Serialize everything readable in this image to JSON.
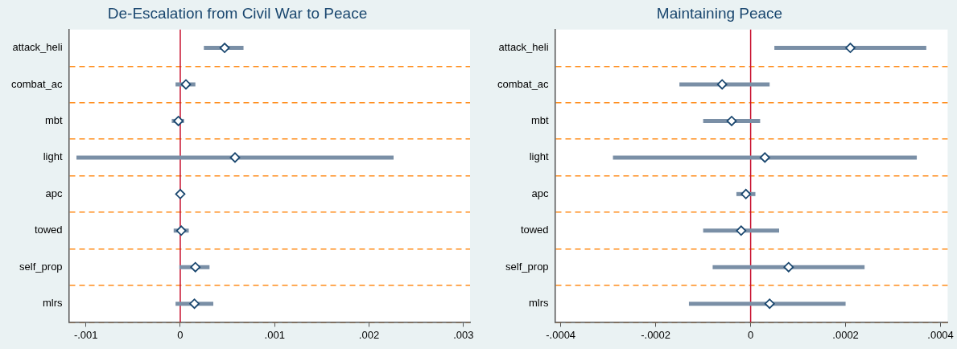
{
  "chart_data": [
    {
      "type": "scatter",
      "title": "De-Escalation from Civil War to Peace",
      "orientation": "horizontal",
      "marker": "diamond",
      "grid": "y",
      "categories": [
        "attack_heli",
        "combat_ac",
        "mbt",
        "light",
        "apc",
        "towed",
        "self_prop",
        "mlrs"
      ],
      "series": [
        {
          "color": "#1a476f",
          "values": [
            0.00047,
            6e-05,
            -2e-05,
            0.00058,
            0,
            1e-05,
            0.00016,
            0.00015
          ],
          "errors": [
            [
              0.00025,
              0.00067
            ],
            [
              -5e-05,
              0.00016
            ],
            [
              -9e-05,
              4e-05
            ],
            [
              -0.0011,
              0.00226
            ],
            null,
            [
              -7e-05,
              9e-05
            ],
            [
              -1e-05,
              0.00031
            ],
            [
              -5e-05,
              0.00035
            ]
          ]
        }
      ],
      "xlim": [
        -0.00118,
        0.00307
      ],
      "xticks": [
        {
          "value": -0.001,
          "label": "-.001"
        },
        0,
        {
          "value": 0.001,
          "label": ".001"
        },
        {
          "value": 0.002,
          "label": ".002"
        },
        {
          "value": 0.003,
          "label": ".003"
        }
      ],
      "ref_lines": [
        {
          "axis": "x",
          "value": 0,
          "color": "#c8102e"
        }
      ]
    },
    {
      "type": "scatter",
      "title": "Maintaining Peace",
      "orientation": "horizontal",
      "marker": "diamond",
      "grid": "y",
      "categories": [
        "attack_heli",
        "combat_ac",
        "mbt",
        "light",
        "apc",
        "towed",
        "self_prop",
        "mlrs"
      ],
      "series": [
        {
          "color": "#1a476f",
          "values": [
            0.00021,
            -6e-05,
            -4e-05,
            3e-05,
            -1e-05,
            -2e-05,
            8e-05,
            4e-05
          ],
          "errors": [
            [
              5e-05,
              0.00037
            ],
            [
              -0.00015,
              4e-05
            ],
            [
              -0.0001,
              2e-05
            ],
            [
              -0.00029,
              0.00035
            ],
            [
              -3e-05,
              1e-05
            ],
            [
              -0.0001,
              6e-05
            ],
            [
              -8e-05,
              0.00024
            ],
            [
              -0.00013,
              0.0002
            ]
          ]
        }
      ],
      "xlim": [
        -0.000412,
        0.000415
      ],
      "xticks": [
        {
          "value": -0.0004,
          "label": "-.0004"
        },
        {
          "value": -0.0002,
          "label": "-.0002"
        },
        0,
        {
          "value": 0.0002,
          "label": ".0002"
        },
        {
          "value": 0.0004,
          "label": ".0004"
        }
      ],
      "ref_lines": [
        {
          "axis": "x",
          "value": 0,
          "color": "#c8102e"
        }
      ]
    }
  ]
}
